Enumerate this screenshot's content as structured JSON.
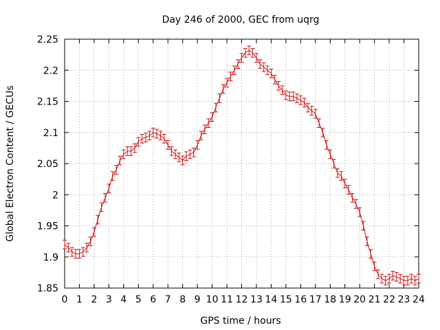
{
  "chart_data": {
    "type": "line",
    "title": "Day 246 of 2000, GEC from uqrg",
    "xlabel": "GPS time / hours",
    "ylabel": "Global Electron Content / GECUs",
    "xlim": [
      0,
      24
    ],
    "ylim": [
      1.85,
      2.25
    ],
    "x_ticks": [
      "0",
      "1",
      "2",
      "3",
      "4",
      "5",
      "6",
      "7",
      "8",
      "9",
      "10",
      "11",
      "12",
      "13",
      "14",
      "15",
      "16",
      "17",
      "18",
      "19",
      "20",
      "21",
      "22",
      "23",
      "24"
    ],
    "y_ticks": [
      "1.85",
      "1.9",
      "1.95",
      "2",
      "2.05",
      "2.1",
      "2.15",
      "2.2",
      "2.25"
    ],
    "grid": true,
    "series_color": "#cc1111",
    "x": [
      0,
      0.25,
      0.5,
      0.75,
      1,
      1.25,
      1.5,
      1.75,
      2,
      2.25,
      2.5,
      2.75,
      3,
      3.25,
      3.5,
      3.75,
      4,
      4.25,
      4.5,
      4.75,
      5,
      5.25,
      5.5,
      5.75,
      6,
      6.25,
      6.5,
      6.75,
      7,
      7.25,
      7.5,
      7.75,
      8,
      8.25,
      8.5,
      8.75,
      9,
      9.25,
      9.5,
      9.75,
      10,
      10.25,
      10.5,
      10.75,
      11,
      11.25,
      11.5,
      11.75,
      12,
      12.25,
      12.5,
      12.75,
      13,
      13.25,
      13.5,
      13.75,
      14,
      14.25,
      14.5,
      14.75,
      15,
      15.25,
      15.5,
      15.75,
      16,
      16.25,
      16.5,
      16.75,
      17,
      17.25,
      17.5,
      17.75,
      18,
      18.25,
      18.5,
      18.75,
      19,
      19.25,
      19.5,
      19.75,
      20,
      20.25,
      20.5,
      20.75,
      21,
      21.25,
      21.5,
      21.75,
      22,
      22.25,
      22.5,
      22.75,
      23,
      23.25,
      23.5,
      23.75,
      24
    ],
    "y": [
      1.92,
      1.915,
      1.908,
      1.905,
      1.905,
      1.908,
      1.915,
      1.925,
      1.94,
      1.96,
      1.98,
      1.995,
      2.01,
      2.03,
      2.04,
      2.055,
      2.065,
      2.07,
      2.07,
      2.075,
      2.085,
      2.09,
      2.092,
      2.095,
      2.1,
      2.098,
      2.095,
      2.09,
      2.08,
      2.07,
      2.065,
      2.06,
      2.055,
      2.062,
      2.065,
      2.068,
      2.08,
      2.095,
      2.105,
      2.115,
      2.125,
      2.14,
      2.155,
      2.17,
      2.18,
      2.19,
      2.2,
      2.21,
      2.22,
      2.228,
      2.232,
      2.228,
      2.22,
      2.21,
      2.205,
      2.2,
      2.195,
      2.185,
      2.175,
      2.168,
      2.16,
      2.158,
      2.158,
      2.155,
      2.152,
      2.148,
      2.14,
      2.135,
      2.13,
      2.115,
      2.1,
      2.08,
      2.065,
      2.05,
      2.035,
      2.03,
      2.018,
      2.008,
      1.995,
      1.985,
      1.972,
      1.95,
      1.925,
      1.905,
      1.885,
      1.872,
      1.865,
      1.862,
      1.865,
      1.87,
      1.868,
      1.865,
      1.862,
      1.862,
      1.865,
      1.862,
      1.865
    ],
    "error": 0.007
  }
}
